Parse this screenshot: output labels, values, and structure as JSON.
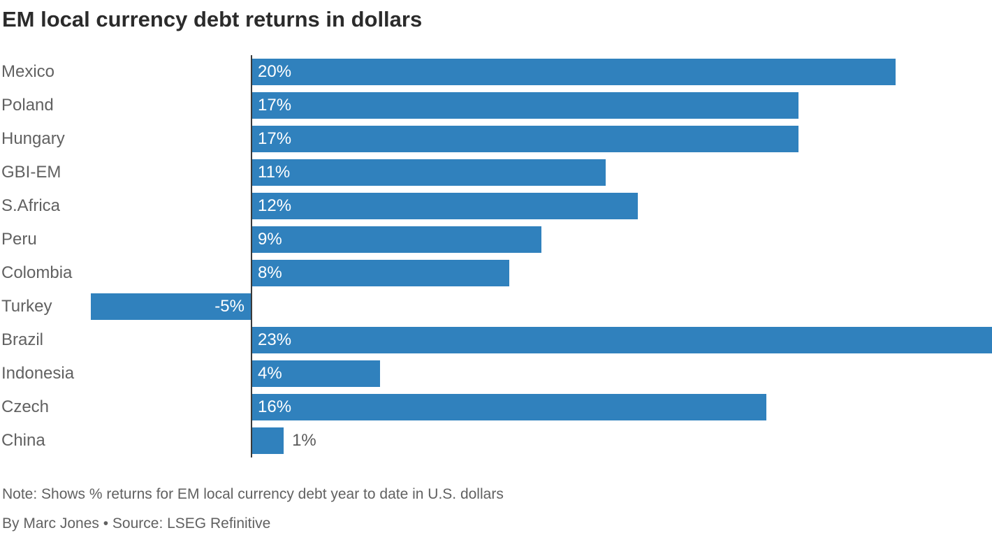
{
  "title": "EM local currency debt returns in dollars",
  "note": "Note: Shows % returns for EM local currency debt year to date in U.S. dollars",
  "byline": "By Marc Jones • Source: LSEG Refinitive",
  "colors": {
    "bar": "#3081BD",
    "axis": "#3A3A3A",
    "label_inside": "#FFFFFF",
    "label_outside": "#595959",
    "title_text": "#2B2B2B",
    "category_text": "#616161"
  },
  "chart_data": {
    "type": "bar",
    "orientation": "horizontal",
    "title": "EM local currency debt returns in dollars",
    "xlabel": "",
    "ylabel": "",
    "grid": false,
    "legend": false,
    "xlim": [
      -5.5,
      23
    ],
    "categories": [
      "Mexico",
      "Poland",
      "Hungary",
      "GBI-EM",
      "S.Africa",
      "Peru",
      "Colombia",
      "Turkey",
      "Brazil",
      "Indonesia",
      "Czech",
      "China"
    ],
    "values": [
      20,
      17,
      17,
      11,
      12,
      9,
      8,
      -5,
      23,
      4,
      16,
      1
    ],
    "value_labels": [
      "20%",
      "17%",
      "17%",
      "11%",
      "12%",
      "9%",
      "8%",
      "-5%",
      "23%",
      "4%",
      "16%",
      "1%"
    ]
  }
}
